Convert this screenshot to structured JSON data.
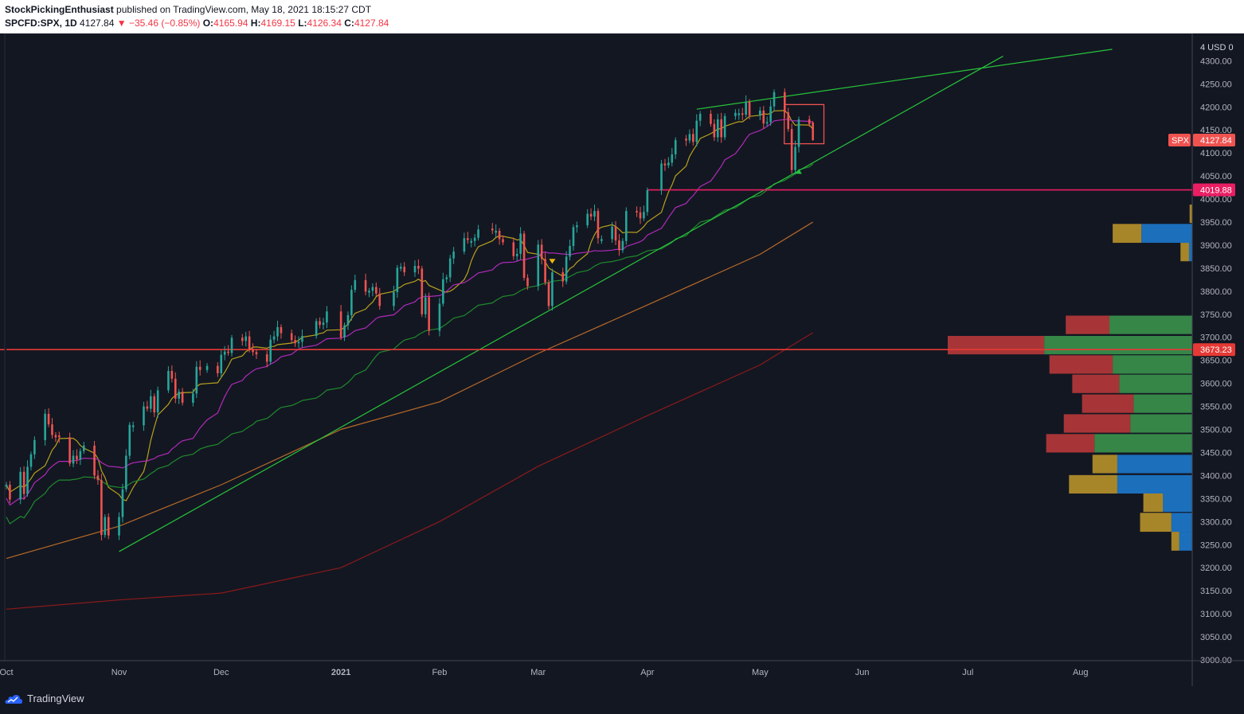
{
  "header": {
    "author": "StockPickingEnthusiast",
    "published_text": "published on TradingView.com, May 18, 2021 18:15:27 CDT",
    "symbol": "SPCFD:SPX, 1D",
    "last": "4127.84",
    "change": "▼ −35.46 (−0.85%)",
    "o_label": "O:",
    "o_value": "4165.94",
    "h_label": "H:",
    "h_value": "4169.15",
    "l_label": "L:",
    "l_value": "4126.34",
    "c_label": "C:",
    "c_value": "4127.84"
  },
  "footer": {
    "brand": "TradingView"
  },
  "colors": {
    "background": "#131722",
    "up": "#26a69a",
    "down": "#ef5350",
    "ma_yellow": "#b8a11d",
    "ma_magenta": "#b02ab8",
    "ma_green": "#1f8a2c",
    "ma_orange": "#b86a28",
    "ma_red": "#8b1a1a",
    "trendline": "#27c43a",
    "level_pink": "#e91e63",
    "level_red": "#e53935",
    "vp_up": "#3d9a4f",
    "vp_down": "#c23b3b",
    "vp_va_up": "#1e7fd6",
    "vp_va_down": "#c29a2a"
  },
  "chart_data": {
    "type": "candlestick",
    "symbol": "SPCFD:SPX",
    "interval": "1D",
    "currency_label": "USD",
    "y_range": [
      3000,
      4350
    ],
    "y_ticks": [
      3000,
      3050,
      3100,
      3150,
      3200,
      3250,
      3300,
      3350,
      3400,
      3450,
      3500,
      3550,
      3600,
      3650,
      3700,
      3750,
      3800,
      3850,
      3900,
      3950,
      4000,
      4050,
      4100,
      4150,
      4200,
      4250,
      4300
    ],
    "x_labels": [
      {
        "label": "Oct",
        "date": "2020-10-01"
      },
      {
        "label": "Nov",
        "date": "2020-11-02"
      },
      {
        "label": "Dec",
        "date": "2020-12-01"
      },
      {
        "label": "2021",
        "date": "2021-01-04"
      },
      {
        "label": "Feb",
        "date": "2021-02-01"
      },
      {
        "label": "Mar",
        "date": "2021-03-01"
      },
      {
        "label": "Apr",
        "date": "2021-04-01"
      },
      {
        "label": "May",
        "date": "2021-05-03"
      },
      {
        "label": "Jun",
        "date": "2021-06-01"
      },
      {
        "label": "Jul",
        "date": "2021-07-01"
      },
      {
        "label": "Aug",
        "date": "2021-08-02"
      }
    ],
    "x_range": [
      "2020-10-01",
      "2021-08-31"
    ],
    "close_series": [
      [
        "2020-10-01",
        3380
      ],
      [
        "2020-10-02",
        3348
      ],
      [
        "2020-10-05",
        3408
      ],
      [
        "2020-10-06",
        3360
      ],
      [
        "2020-10-07",
        3419
      ],
      [
        "2020-10-08",
        3446
      ],
      [
        "2020-10-09",
        3477
      ],
      [
        "2020-10-12",
        3534
      ],
      [
        "2020-10-13",
        3511
      ],
      [
        "2020-10-14",
        3488
      ],
      [
        "2020-10-15",
        3483
      ],
      [
        "2020-10-16",
        3483
      ],
      [
        "2020-10-19",
        3426
      ],
      [
        "2020-10-20",
        3443
      ],
      [
        "2020-10-21",
        3435
      ],
      [
        "2020-10-22",
        3453
      ],
      [
        "2020-10-23",
        3465
      ],
      [
        "2020-10-26",
        3400
      ],
      [
        "2020-10-27",
        3390
      ],
      [
        "2020-10-28",
        3271
      ],
      [
        "2020-10-29",
        3310
      ],
      [
        "2020-10-30",
        3270
      ],
      [
        "2020-11-02",
        3310
      ],
      [
        "2020-11-03",
        3370
      ],
      [
        "2020-11-04",
        3443
      ],
      [
        "2020-11-05",
        3510
      ],
      [
        "2020-11-06",
        3509
      ],
      [
        "2020-11-09",
        3550
      ],
      [
        "2020-11-10",
        3545
      ],
      [
        "2020-11-11",
        3572
      ],
      [
        "2020-11-12",
        3537
      ],
      [
        "2020-11-13",
        3585
      ],
      [
        "2020-11-16",
        3627
      ],
      [
        "2020-11-17",
        3610
      ],
      [
        "2020-11-18",
        3567
      ],
      [
        "2020-11-19",
        3582
      ],
      [
        "2020-11-20",
        3558
      ],
      [
        "2020-11-23",
        3578
      ],
      [
        "2020-11-24",
        3636
      ],
      [
        "2020-11-25",
        3629
      ],
      [
        "2020-11-27",
        3638
      ],
      [
        "2020-11-30",
        3622
      ],
      [
        "2020-12-01",
        3662
      ],
      [
        "2020-12-02",
        3669
      ],
      [
        "2020-12-03",
        3666
      ],
      [
        "2020-12-04",
        3699
      ],
      [
        "2020-12-07",
        3692
      ],
      [
        "2020-12-08",
        3702
      ],
      [
        "2020-12-09",
        3673
      ],
      [
        "2020-12-10",
        3668
      ],
      [
        "2020-12-11",
        3663
      ],
      [
        "2020-12-14",
        3647
      ],
      [
        "2020-12-15",
        3695
      ],
      [
        "2020-12-16",
        3702
      ],
      [
        "2020-12-17",
        3722
      ],
      [
        "2020-12-18",
        3709
      ],
      [
        "2020-12-21",
        3694
      ],
      [
        "2020-12-22",
        3687
      ],
      [
        "2020-12-23",
        3690
      ],
      [
        "2020-12-24",
        3703
      ],
      [
        "2020-12-28",
        3735
      ],
      [
        "2020-12-29",
        3727
      ],
      [
        "2020-12-30",
        3732
      ],
      [
        "2020-12-31",
        3756
      ],
      [
        "2021-01-04",
        3700
      ],
      [
        "2021-01-05",
        3726
      ],
      [
        "2021-01-06",
        3748
      ],
      [
        "2021-01-07",
        3803
      ],
      [
        "2021-01-08",
        3824
      ],
      [
        "2021-01-11",
        3799
      ],
      [
        "2021-01-12",
        3801
      ],
      [
        "2021-01-13",
        3809
      ],
      [
        "2021-01-14",
        3795
      ],
      [
        "2021-01-15",
        3768
      ],
      [
        "2021-01-19",
        3798
      ],
      [
        "2021-01-20",
        3851
      ],
      [
        "2021-01-21",
        3853
      ],
      [
        "2021-01-22",
        3841
      ],
      [
        "2021-01-25",
        3855
      ],
      [
        "2021-01-26",
        3849
      ],
      [
        "2021-01-27",
        3750
      ],
      [
        "2021-01-28",
        3787
      ],
      [
        "2021-01-29",
        3714
      ],
      [
        "2021-02-01",
        3773
      ],
      [
        "2021-02-02",
        3826
      ],
      [
        "2021-02-03",
        3830
      ],
      [
        "2021-02-04",
        3871
      ],
      [
        "2021-02-05",
        3886
      ],
      [
        "2021-02-08",
        3915
      ],
      [
        "2021-02-09",
        3911
      ],
      [
        "2021-02-10",
        3909
      ],
      [
        "2021-02-11",
        3916
      ],
      [
        "2021-02-12",
        3934
      ],
      [
        "2021-02-16",
        3932
      ],
      [
        "2021-02-17",
        3931
      ],
      [
        "2021-02-18",
        3913
      ],
      [
        "2021-02-19",
        3906
      ],
      [
        "2021-02-22",
        3876
      ],
      [
        "2021-02-23",
        3881
      ],
      [
        "2021-02-24",
        3925
      ],
      [
        "2021-02-25",
        3829
      ],
      [
        "2021-02-26",
        3811
      ],
      [
        "2021-03-01",
        3901
      ],
      [
        "2021-03-02",
        3870
      ],
      [
        "2021-03-03",
        3819
      ],
      [
        "2021-03-04",
        3768
      ],
      [
        "2021-03-05",
        3841
      ],
      [
        "2021-03-08",
        3821
      ],
      [
        "2021-03-09",
        3875
      ],
      [
        "2021-03-10",
        3898
      ],
      [
        "2021-03-11",
        3939
      ],
      [
        "2021-03-12",
        3943
      ],
      [
        "2021-03-15",
        3968
      ],
      [
        "2021-03-16",
        3962
      ],
      [
        "2021-03-17",
        3974
      ],
      [
        "2021-03-18",
        3915
      ],
      [
        "2021-03-19",
        3913
      ],
      [
        "2021-03-22",
        3940
      ],
      [
        "2021-03-23",
        3910
      ],
      [
        "2021-03-24",
        3889
      ],
      [
        "2021-03-25",
        3909
      ],
      [
        "2021-03-26",
        3974
      ],
      [
        "2021-03-29",
        3971
      ],
      [
        "2021-03-30",
        3958
      ],
      [
        "2021-03-31",
        3972
      ],
      [
        "2021-04-01",
        4019
      ],
      [
        "2021-04-05",
        4077
      ],
      [
        "2021-04-06",
        4073
      ],
      [
        "2021-04-07",
        4079
      ],
      [
        "2021-04-08",
        4097
      ],
      [
        "2021-04-09",
        4128
      ],
      [
        "2021-04-12",
        4127
      ],
      [
        "2021-04-13",
        4141
      ],
      [
        "2021-04-14",
        4124
      ],
      [
        "2021-04-15",
        4170
      ],
      [
        "2021-04-16",
        4185
      ],
      [
        "2021-04-19",
        4163
      ],
      [
        "2021-04-20",
        4134
      ],
      [
        "2021-04-21",
        4173
      ],
      [
        "2021-04-22",
        4134
      ],
      [
        "2021-04-23",
        4180
      ],
      [
        "2021-04-26",
        4187
      ],
      [
        "2021-04-27",
        4186
      ],
      [
        "2021-04-28",
        4183
      ],
      [
        "2021-04-29",
        4211
      ],
      [
        "2021-04-30",
        4181
      ],
      [
        "2021-05-03",
        4192
      ],
      [
        "2021-05-04",
        4164
      ],
      [
        "2021-05-05",
        4167
      ],
      [
        "2021-05-06",
        4201
      ],
      [
        "2021-05-07",
        4232
      ],
      [
        "2021-05-10",
        4188
      ],
      [
        "2021-05-11",
        4152
      ],
      [
        "2021-05-12",
        4063
      ],
      [
        "2021-05-13",
        4113
      ],
      [
        "2021-05-14",
        4173
      ],
      [
        "2021-05-17",
        4163
      ],
      [
        "2021-05-18",
        4128
      ]
    ],
    "last_candle": {
      "date": "2021-05-18",
      "open": 4165.94,
      "high": 4169.15,
      "low": 4126.34,
      "close": 4127.84
    },
    "moving_averages": [
      {
        "color": "#b8a11d",
        "period": 8
      },
      {
        "color": "#b02ab8",
        "period": 21
      },
      {
        "color": "#1f8a2c",
        "period": 50
      },
      {
        "color": "#b86a28",
        "period": 100
      },
      {
        "color": "#8b1a1a",
        "period": 200
      }
    ],
    "trendlines": [
      {
        "from": [
          "2020-11-02",
          3235
        ],
        "to": [
          "2021-07-11",
          4310
        ]
      },
      {
        "from": [
          "2021-04-15",
          4195
        ],
        "to": [
          "2021-08-11",
          4325
        ]
      }
    ],
    "horizontal_levels": [
      {
        "price": 4019.88,
        "label": "4019.88",
        "color": "#e91e63",
        "from": "2021-04-01"
      },
      {
        "price": 3673.23,
        "label": "3673.23",
        "color": "#e53935",
        "from": "2020-10-01"
      }
    ],
    "price_label": {
      "symbol": "SPX",
      "price": "4127.84"
    },
    "highlight_box": {
      "from": "2021-05-11",
      "to": "2021-05-20",
      "low": 4120,
      "high": 4205
    },
    "signals": [
      {
        "date": "2021-03-05",
        "price": 3865,
        "direction": "down"
      },
      {
        "date": "2021-05-14",
        "price": 4060,
        "direction": "up"
      }
    ],
    "volume_profile": [
      {
        "low": 3237,
        "high": 3278,
        "up": 0.2,
        "down": 0.12
      },
      {
        "low": 3278,
        "high": 3319,
        "up": 0.32,
        "down": 0.48
      },
      {
        "low": 3321,
        "high": 3361,
        "up": 0.45,
        "down": 0.3
      },
      {
        "low": 3361,
        "high": 3401,
        "up": 1.15,
        "down": 0.74
      },
      {
        "low": 3405,
        "high": 3445,
        "up": 1.15,
        "down": 0.38
      },
      {
        "low": 3450,
        "high": 3490,
        "up": 1.5,
        "down": 0.74
      },
      {
        "low": 3493,
        "high": 3533,
        "up": 0.95,
        "down": 1.02
      },
      {
        "low": 3536,
        "high": 3576,
        "up": 0.9,
        "down": 0.79
      },
      {
        "low": 3579,
        "high": 3619,
        "up": 1.12,
        "down": 0.72
      },
      {
        "low": 3621,
        "high": 3661,
        "up": 1.22,
        "down": 0.97
      },
      {
        "low": 3663,
        "high": 3703,
        "up": 2.27,
        "down": 1.48
      },
      {
        "low": 3707,
        "high": 3747,
        "up": 1.27,
        "down": 0.67
      },
      {
        "low": 3865,
        "high": 3905,
        "up": 0.05,
        "down": 0.13
      },
      {
        "low": 3905,
        "high": 3946,
        "up": 0.78,
        "down": 0.44
      },
      {
        "low": 3948,
        "high": 3988,
        "up": 0.0,
        "down": 0.04
      }
    ]
  }
}
